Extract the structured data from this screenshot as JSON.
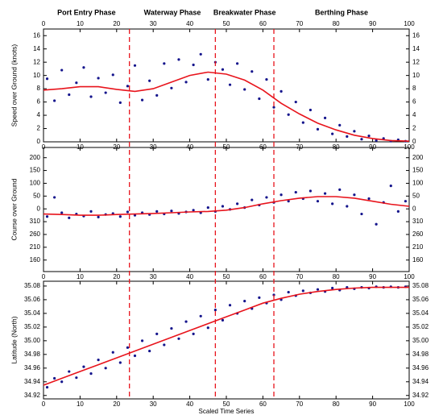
{
  "chart_data": [
    {
      "type": "scatter",
      "annotations": [
        "Port Entry Phase",
        "Waterway Phase",
        "Breakwater Phase",
        "Berthing Phase"
      ],
      "boundaries": [
        23.5,
        47,
        63
      ],
      "ylabel": "Speed over Ground (knots)",
      "xlim": [
        0,
        100
      ],
      "xticks": [
        0,
        10,
        20,
        30,
        40,
        50,
        60,
        70,
        80,
        90,
        100
      ],
      "ylim": [
        0,
        17
      ],
      "yticks": [
        0,
        2,
        4,
        6,
        8,
        10,
        12,
        14,
        16
      ],
      "series": [
        {
          "color": "#14148c",
          "x": [
            1,
            3,
            5,
            7,
            9,
            11,
            13,
            15,
            17,
            19,
            21,
            23,
            25,
            27,
            29,
            31,
            33,
            35,
            37,
            39,
            41,
            43,
            45,
            47,
            49,
            51,
            53,
            55,
            57,
            59,
            61,
            63,
            65,
            67,
            69,
            71,
            73,
            75,
            77,
            79,
            81,
            83,
            85,
            87,
            89,
            91,
            93,
            95,
            97,
            99
          ],
          "values": [
            9.5,
            6.2,
            10.8,
            7.1,
            8.9,
            11.2,
            6.8,
            9.6,
            7.4,
            10.1,
            5.9,
            8.4,
            11.5,
            6.3,
            9.2,
            7.0,
            11.8,
            8.1,
            12.4,
            9.0,
            11.6,
            13.2,
            9.4,
            12.0,
            10.9,
            8.6,
            11.8,
            7.9,
            10.6,
            6.5,
            9.4,
            5.2,
            7.6,
            4.1,
            6.0,
            2.9,
            4.8,
            1.9,
            3.6,
            1.2,
            2.5,
            0.8,
            1.6,
            0.4,
            0.9,
            0.2,
            0.5,
            0.1,
            0.3,
            0.1
          ]
        },
        {
          "color": "#e8141c",
          "kind": "line",
          "x": [
            0,
            5,
            10,
            15,
            20,
            25,
            30,
            35,
            40,
            45,
            50,
            55,
            60,
            65,
            70,
            75,
            80,
            85,
            90,
            95,
            100
          ],
          "values": [
            7.8,
            8.0,
            8.3,
            8.3,
            7.9,
            7.6,
            8.0,
            9.0,
            10.0,
            10.5,
            10.2,
            9.3,
            7.8,
            5.8,
            4.2,
            2.8,
            1.8,
            1.0,
            0.5,
            0.2,
            0.1
          ]
        }
      ]
    },
    {
      "type": "scatter",
      "ylabel": "Course over Ground",
      "xlim": [
        0,
        100
      ],
      "xticks": [
        0,
        10,
        20,
        30,
        40,
        50,
        60,
        70,
        80,
        90,
        100
      ],
      "ylim": [
        -245,
        240
      ],
      "yticks": [
        {
          "value": -200,
          "label": "160"
        },
        {
          "value": -150,
          "label": "210"
        },
        {
          "value": -100,
          "label": "260"
        },
        {
          "value": -50,
          "label": "310"
        },
        0,
        50,
        100,
        150,
        200
      ],
      "series": [
        {
          "color": "#14148c",
          "x": [
            1,
            3,
            5,
            7,
            9,
            11,
            13,
            15,
            17,
            19,
            21,
            23,
            25,
            27,
            29,
            31,
            33,
            35,
            37,
            39,
            41,
            43,
            45,
            47,
            49,
            51,
            53,
            55,
            57,
            59,
            61,
            63,
            65,
            67,
            69,
            71,
            73,
            75,
            77,
            79,
            81,
            83,
            85,
            87,
            89,
            91,
            93,
            95,
            97,
            99
          ],
          "values": [
            -30,
            45,
            -15,
            -35,
            -20,
            -28,
            -10,
            -32,
            -22,
            -18,
            -30,
            -12,
            -25,
            -15,
            -22,
            -10,
            -20,
            -8,
            -18,
            -12,
            -5,
            -15,
            5,
            -10,
            10,
            -2,
            20,
            5,
            35,
            15,
            45,
            25,
            55,
            30,
            65,
            40,
            70,
            30,
            60,
            20,
            75,
            10,
            55,
            -20,
            40,
            -60,
            25,
            90,
            -10,
            30
          ]
        },
        {
          "color": "#e8141c",
          "kind": "line",
          "x": [
            0,
            5,
            10,
            15,
            20,
            25,
            30,
            35,
            40,
            45,
            50,
            55,
            60,
            65,
            70,
            75,
            80,
            85,
            90,
            95,
            100
          ],
          "values": [
            -20,
            -22,
            -25,
            -25,
            -22,
            -20,
            -18,
            -15,
            -12,
            -10,
            -5,
            5,
            20,
            32,
            42,
            48,
            48,
            42,
            30,
            18,
            10
          ]
        }
      ]
    },
    {
      "type": "scatter",
      "ylabel": "Latitude (North)",
      "xlabel": "Scaled Time Series",
      "xlim": [
        0,
        100
      ],
      "xticks": [
        0,
        10,
        20,
        30,
        40,
        50,
        60,
        70,
        80,
        90,
        100
      ],
      "ylim": [
        34.915,
        35.087
      ],
      "yticks": [
        34.92,
        34.94,
        34.96,
        34.98,
        {
          "value": 35,
          "label": "35.00"
        },
        35.02,
        35.04,
        35.06,
        35.08
      ],
      "series": [
        {
          "color": "#14148c",
          "x": [
            1,
            3,
            5,
            7,
            9,
            11,
            13,
            15,
            17,
            19,
            21,
            23,
            25,
            27,
            29,
            31,
            33,
            35,
            37,
            39,
            41,
            43,
            45,
            47,
            49,
            51,
            53,
            55,
            57,
            59,
            61,
            63,
            65,
            67,
            69,
            71,
            73,
            75,
            77,
            79,
            81,
            83,
            85,
            87,
            89,
            91,
            93,
            95,
            97,
            99
          ],
          "values": [
            34.932,
            34.945,
            34.94,
            34.955,
            34.946,
            34.962,
            34.952,
            34.972,
            34.96,
            34.983,
            34.968,
            34.99,
            34.978,
            35.0,
            34.985,
            35.01,
            34.994,
            35.018,
            35.003,
            35.028,
            35.01,
            35.036,
            35.019,
            35.045,
            35.03,
            35.052,
            35.04,
            35.058,
            35.047,
            35.063,
            35.055,
            35.067,
            35.06,
            35.071,
            35.066,
            35.073,
            35.07,
            35.075,
            35.072,
            35.077,
            35.074,
            35.078,
            35.076,
            35.078,
            35.077,
            35.079,
            35.078,
            35.079,
            35.078,
            35.079
          ]
        },
        {
          "color": "#e8141c",
          "kind": "line",
          "x": [
            0,
            5,
            10,
            15,
            20,
            25,
            30,
            35,
            40,
            45,
            50,
            55,
            60,
            65,
            70,
            75,
            80,
            85,
            90,
            95,
            100
          ],
          "values": [
            34.935,
            34.945,
            34.955,
            34.965,
            34.975,
            34.985,
            34.995,
            35.005,
            35.015,
            35.025,
            35.035,
            35.045,
            35.055,
            35.062,
            35.068,
            35.072,
            35.075,
            35.077,
            35.078,
            35.078,
            35.078
          ]
        }
      ]
    }
  ]
}
